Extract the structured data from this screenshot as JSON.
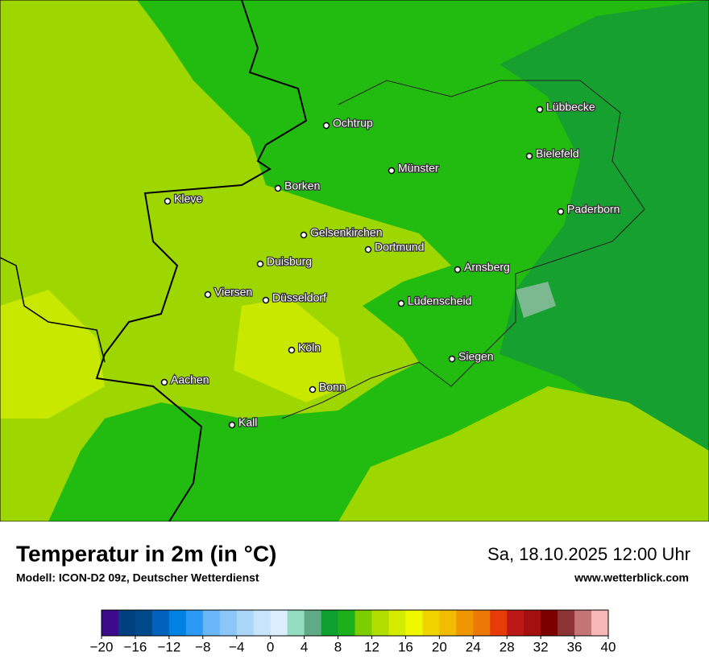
{
  "header": {
    "title": "Temperatur in 2m (in °C)",
    "subtitle": "Modell: ICON-D2 09z, Deutscher Wetterdienst",
    "date": "Sa, 18.10.2025 12:00 Uhr",
    "website": "www.wetterblick.com"
  },
  "map": {
    "cities": [
      "Lübbecke",
      "Ochtrup",
      "Bielefeld",
      "Münster",
      "Borken",
      "Kleve",
      "Paderborn",
      "Gelsenkirchen",
      "Dortmund",
      "Duisburg",
      "Arnsberg",
      "Viersen",
      "Düsseldorf",
      "Lüdenscheid",
      "Köln",
      "Siegen",
      "Aachen",
      "Bonn",
      "Kall"
    ]
  },
  "legend": {
    "range": [
      -20,
      40
    ],
    "colors": [
      "#3c0a8a",
      "#003f80",
      "#004a8a",
      "#0062bc",
      "#0082e2",
      "#2a9af4",
      "#6ab6f8",
      "#8ac6f8",
      "#aad6f8",
      "#c8e4fa",
      "#dceefc",
      "#92dcc0",
      "#60aa88",
      "#10a030",
      "#1cb01c",
      "#7cce00",
      "#b0de00",
      "#d4ec00",
      "#f0f800",
      "#f0d400",
      "#f4bc00",
      "#f09600",
      "#ec7808",
      "#e83c08",
      "#bc1818",
      "#a41010",
      "#7c0000",
      "#8c3434",
      "#c47474",
      "#f8b8b8"
    ],
    "ticks": [
      {
        "value": -20,
        "label": "−20"
      },
      {
        "value": -16,
        "label": "−16"
      },
      {
        "value": -12,
        "label": "−12"
      },
      {
        "value": -8,
        "label": "−8"
      },
      {
        "value": -4,
        "label": "−4"
      },
      0,
      4,
      8,
      12,
      16,
      20,
      24,
      28,
      32,
      36,
      40
    ]
  }
}
